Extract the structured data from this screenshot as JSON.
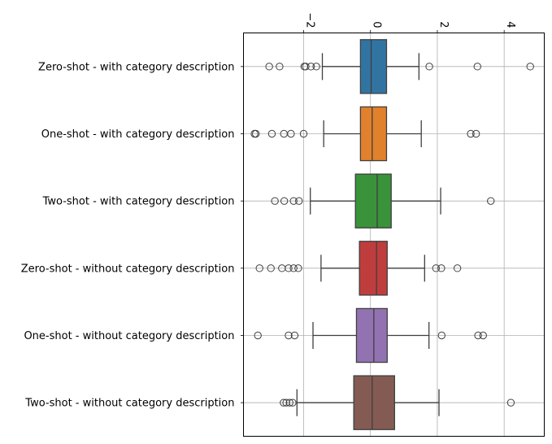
{
  "chart_data": {
    "type": "box",
    "orientation": "horizontal",
    "title": "",
    "xlabel": "",
    "ylabel": "",
    "xlim": [
      -3.8,
      5.2
    ],
    "x_ticks": [
      -2,
      0,
      2,
      4
    ],
    "x_tick_labels": [
      "−2",
      "0",
      "2",
      "4"
    ],
    "x_tick_rotation": 90,
    "grid": true,
    "categories": [
      "Zero-shot - with category description",
      "One-shot - with category description",
      "Two-shot - with category description",
      "Zero-shot - without category description",
      "One-shot - without category description",
      "Two-shot - without category description"
    ],
    "colors": [
      "#3274a1",
      "#e1812c",
      "#3a923a",
      "#c03d3e",
      "#9372b2",
      "#845b53"
    ],
    "series": [
      {
        "q1": -0.3,
        "median": 0.02,
        "q3": 0.48,
        "whisker_low": -1.44,
        "whisker_high": 1.45,
        "fliers": [
          -3.03,
          -2.72,
          -1.98,
          -1.94,
          -1.78,
          -1.62,
          1.76,
          3.2,
          4.78
        ]
      },
      {
        "q1": -0.3,
        "median": 0.05,
        "q3": 0.48,
        "whisker_low": -1.4,
        "whisker_high": 1.52,
        "fliers": [
          -3.47,
          -3.43,
          -2.95,
          -2.59,
          -2.38,
          -2.0,
          3.0,
          3.16
        ]
      },
      {
        "q1": -0.45,
        "median": 0.2,
        "q3": 0.62,
        "whisker_low": -1.8,
        "whisker_high": 2.1,
        "fliers": [
          -2.86,
          -2.58,
          -2.3,
          -2.14,
          3.6
        ]
      },
      {
        "q1": -0.33,
        "median": 0.18,
        "q3": 0.5,
        "whisker_low": -1.48,
        "whisker_high": 1.62,
        "fliers": [
          -3.32,
          -2.98,
          -2.65,
          -2.45,
          -2.3,
          -2.16,
          1.96,
          2.12,
          2.6
        ]
      },
      {
        "q1": -0.42,
        "median": 0.1,
        "q3": 0.5,
        "whisker_low": -1.72,
        "whisker_high": 1.75,
        "fliers": [
          -3.37,
          -2.45,
          -2.27,
          2.13,
          3.22,
          3.37
        ]
      },
      {
        "q1": -0.5,
        "median": 0.05,
        "q3": 0.72,
        "whisker_low": -2.2,
        "whisker_high": 2.05,
        "fliers": [
          -2.6,
          -2.52,
          -2.42,
          -2.33,
          4.2
        ]
      }
    ]
  }
}
